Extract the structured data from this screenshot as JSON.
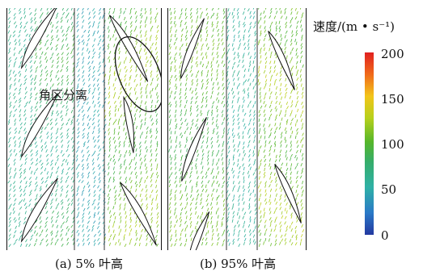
{
  "panels": [
    {
      "caption": "(a) 5% 叶高"
    },
    {
      "caption": "(b) 95% 叶高"
    }
  ],
  "annotation": "角区分离",
  "colorbar": {
    "title": "速度/(m • s⁻¹)",
    "ticks": [
      "200",
      "150",
      "100",
      "50",
      "0"
    ],
    "colors": [
      "#e02020",
      "#f06a1a",
      "#f2c51a",
      "#b6d01c",
      "#56b62a",
      "#36ad6a",
      "#2fb1a6",
      "#2a79c7",
      "#2338a0"
    ]
  }
}
